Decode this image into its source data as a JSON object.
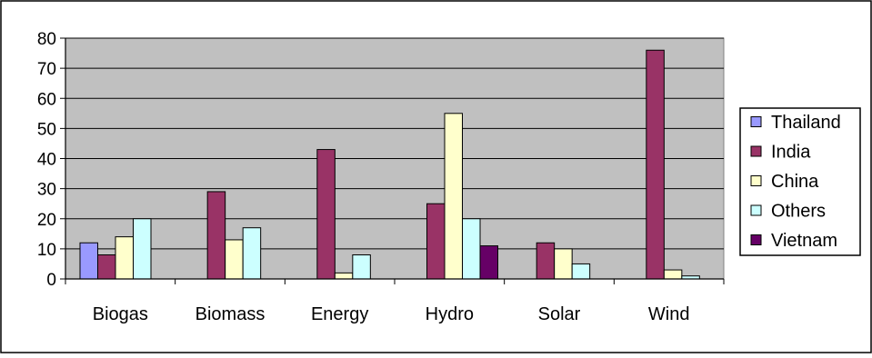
{
  "chart_data": {
    "type": "bar",
    "title": "",
    "xlabel": "",
    "ylabel": "",
    "categories": [
      "Biogas",
      "Biomass",
      "Energy",
      "Hydro",
      "Solar",
      "Wind"
    ],
    "ylim": [
      0,
      80
    ],
    "yticks": [
      "0",
      "10",
      "20",
      "30",
      "40",
      "50",
      "60",
      "70",
      "80"
    ],
    "grid": true,
    "legend_position": "right",
    "plot_background": "#c0c0c0",
    "series": [
      {
        "name": "Thailand",
        "color": "#9999ff",
        "values": [
          12,
          0,
          0,
          0,
          0,
          0
        ]
      },
      {
        "name": "India",
        "color": "#993366",
        "values": [
          8,
          29,
          43,
          25,
          12,
          76
        ]
      },
      {
        "name": "China",
        "color": "#ffffcc",
        "values": [
          14,
          13,
          2,
          55,
          10,
          3
        ]
      },
      {
        "name": "Others",
        "color": "#ccffff",
        "values": [
          20,
          17,
          8,
          20,
          5,
          1
        ]
      },
      {
        "name": "Vietnam",
        "color": "#660066",
        "values": [
          0,
          0,
          0,
          11,
          0,
          0
        ]
      }
    ]
  }
}
